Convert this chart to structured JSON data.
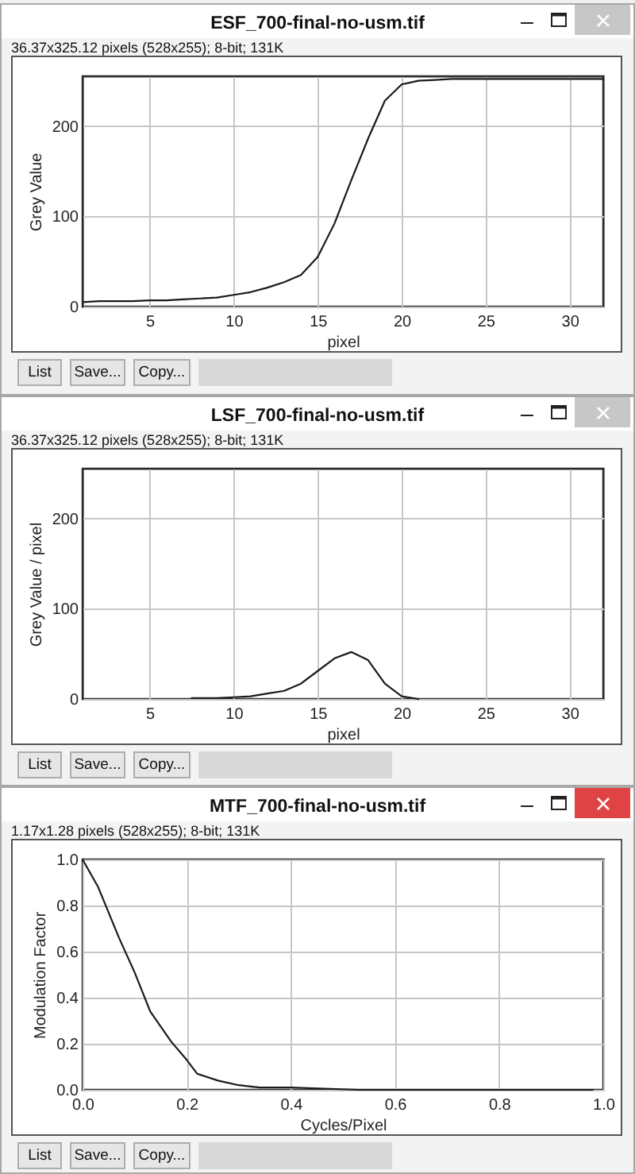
{
  "chart_data": [
    {
      "type": "line",
      "title": "ESF_700-final-no-usm.tif",
      "subtitle": "36.37x325.12 pixels (528x255); 8-bit; 131K",
      "xlabel": "pixel",
      "ylabel": "Grey Value",
      "x": [
        1,
        2,
        3,
        4,
        5,
        6,
        7,
        8,
        9,
        10,
        11,
        12,
        13,
        14,
        15,
        16,
        17,
        18,
        19,
        20,
        21,
        22,
        23,
        24,
        25,
        26,
        27,
        28,
        29,
        30,
        31,
        32
      ],
      "series": [
        {
          "color": "#1a1a1a",
          "values": [
            5,
            6,
            6,
            6,
            7,
            7,
            8,
            9,
            10,
            13,
            16,
            21,
            27,
            35,
            55,
            92,
            140,
            186,
            228,
            246,
            250,
            251,
            252,
            252,
            252,
            252,
            252,
            252,
            252,
            252,
            252,
            252
          ]
        }
      ],
      "xlim": [
        1,
        32
      ],
      "ylim": [
        0,
        255
      ],
      "xticks": [
        5,
        10,
        15,
        20,
        25,
        30
      ],
      "yticks": [
        0,
        100,
        200
      ],
      "grid": true,
      "annotations": [
        "List",
        "Save...",
        "Copy..."
      ]
    },
    {
      "type": "line",
      "title": "LSF_700-final-no-usm.tif",
      "subtitle": "36.37x325.12 pixels (528x255); 8-bit; 131K",
      "xlabel": "pixel",
      "ylabel": "Grey Value / pixel",
      "x": [
        7.5,
        8,
        9,
        10,
        11,
        12,
        13,
        14,
        15,
        16,
        17,
        18,
        19,
        20,
        21
      ],
      "series": [
        {
          "color": "#1a1a1a",
          "values": [
            1,
            1,
            1,
            2,
            3,
            6,
            9,
            17,
            31,
            45,
            52,
            43,
            17,
            3,
            0
          ]
        }
      ],
      "xlim": [
        1,
        32
      ],
      "ylim": [
        0,
        255
      ],
      "xticks": [
        5,
        10,
        15,
        20,
        25,
        30
      ],
      "yticks": [
        0,
        100,
        200
      ],
      "grid": true,
      "annotations": [
        "List",
        "Save...",
        "Copy..."
      ]
    },
    {
      "type": "line",
      "title": "MTF_700-final-no-usm.tif",
      "subtitle": "1.17x1.28 pixels (528x255); 8-bit; 131K",
      "xlabel": "Cycles/Pixel",
      "ylabel": "Modulation Factor",
      "x": [
        0,
        0.03,
        0.07,
        0.1,
        0.13,
        0.17,
        0.2,
        0.22,
        0.26,
        0.3,
        0.34,
        0.4,
        0.53,
        0.79,
        0.98
      ],
      "series": [
        {
          "color": "#1a1a1a",
          "values": [
            1,
            0.88,
            0.66,
            0.51,
            0.34,
            0.21,
            0.13,
            0.07,
            0.04,
            0.02,
            0.01,
            0.01,
            0,
            0,
            0
          ]
        }
      ],
      "xlim": [
        0,
        1
      ],
      "ylim": [
        0,
        1
      ],
      "xticks": [
        {
          "value": 0,
          "label": "0.0"
        },
        0.2,
        0.4,
        0.6,
        0.8,
        {
          "value": 1,
          "label": "1.0"
        }
      ],
      "yticks": [
        {
          "value": 0,
          "label": "0.0"
        },
        0.2,
        0.4,
        0.6,
        0.8,
        {
          "value": 1,
          "label": "1.0"
        }
      ],
      "grid": true,
      "annotations": [
        "List",
        "Save...",
        "Copy..."
      ]
    }
  ]
}
